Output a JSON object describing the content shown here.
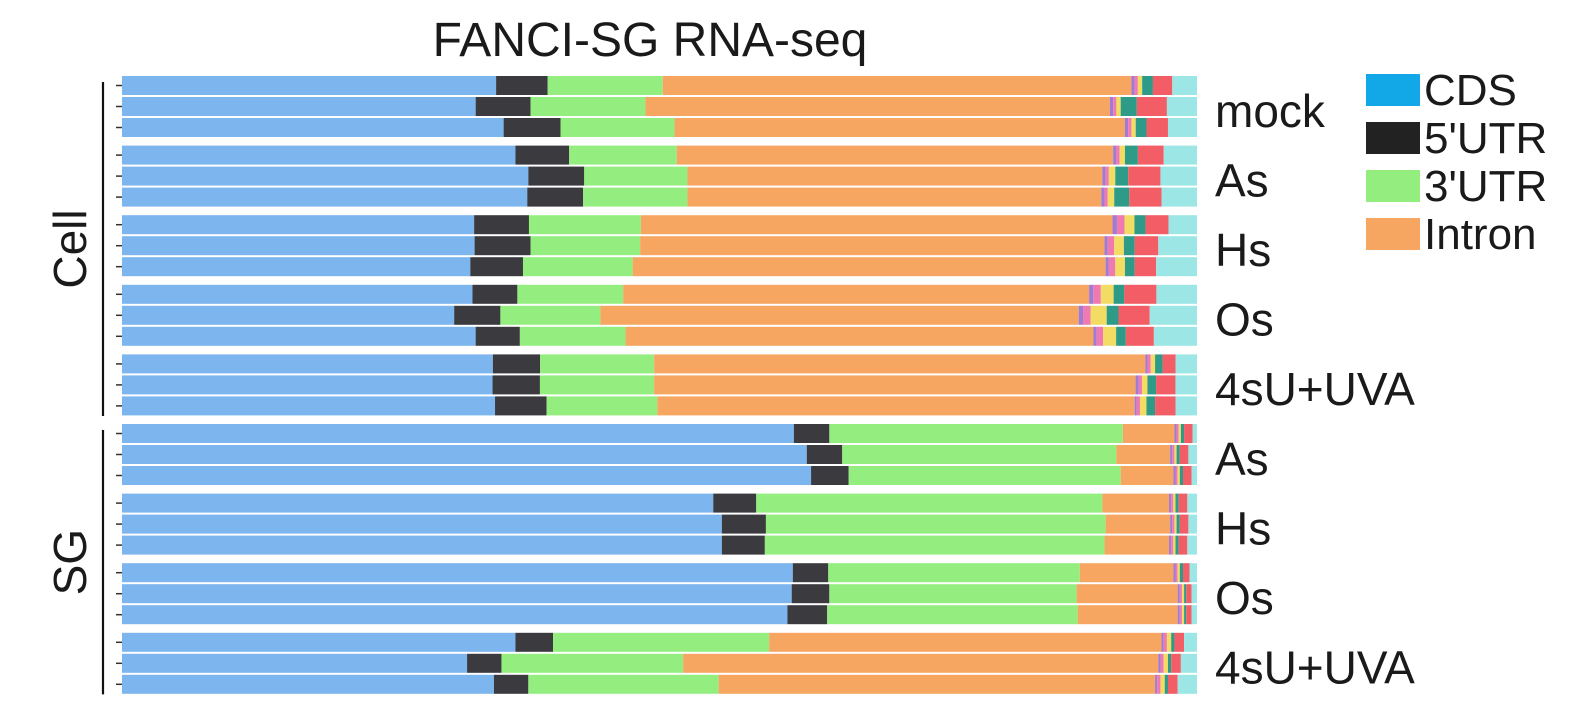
{
  "panel_mark": "",
  "chart_data": {
    "type": "bar",
    "orientation": "horizontal",
    "stacking": "percent",
    "title": "FANCI-SG RNA-seq",
    "xlim": [
      0,
      100
    ],
    "segment_colors": [
      "#7DB5EE",
      "#3A3A3F",
      "#93EE7F",
      "#F7A662",
      "#A07BD6",
      "#F07AB0",
      "#F2DC64",
      "#2E9A88",
      "#F25D66",
      "#9DE6E6"
    ],
    "legend": [
      {
        "label": "CDS",
        "color": "#12A8E8"
      },
      {
        "label": "5'UTR",
        "color": "#222222"
      },
      {
        "label": "3'UTR",
        "color": "#93EE7F"
      },
      {
        "label": "Intron",
        "color": "#F7A662"
      }
    ],
    "groups": [
      {
        "label": "Cell",
        "conditions": [
          {
            "label": "mock",
            "bars": [
              [
                34.8,
                4.8,
                10.7,
                43.6,
                0.3,
                0.3,
                0.4,
                1.0,
                1.8,
                2.3
              ],
              [
                32.9,
                5.1,
                10.7,
                43.2,
                0.3,
                0.3,
                0.4,
                1.5,
                2.8,
                2.8
              ],
              [
                35.5,
                5.3,
                10.6,
                41.9,
                0.3,
                0.3,
                0.4,
                1.0,
                2.0,
                2.7
              ]
            ]
          },
          {
            "label": "As",
            "bars": [
              [
                36.6,
                5.0,
                10.0,
                40.6,
                0.3,
                0.3,
                0.5,
                1.2,
                2.4,
                3.1
              ],
              [
                37.8,
                5.2,
                9.6,
                38.6,
                0.3,
                0.3,
                0.6,
                1.2,
                3.0,
                3.4
              ],
              [
                37.7,
                5.2,
                9.7,
                38.5,
                0.3,
                0.3,
                0.6,
                1.4,
                3.0,
                3.3
              ]
            ]
          },
          {
            "label": "Hs",
            "bars": [
              [
                32.1,
                5.0,
                10.2,
                43.0,
                0.4,
                0.7,
                0.9,
                1.0,
                2.1,
                2.6
              ],
              [
                32.8,
                5.2,
                10.2,
                43.2,
                0.3,
                0.6,
                0.9,
                1.0,
                2.2,
                3.6
              ],
              [
                32.4,
                4.9,
                10.2,
                44.0,
                0.3,
                0.6,
                0.9,
                0.9,
                2.0,
                3.8
              ]
            ]
          },
          {
            "label": "Os",
            "bars": [
              [
                32.8,
                4.2,
                9.9,
                43.6,
                0.4,
                0.7,
                1.2,
                1.0,
                3.0,
                3.8
              ],
              [
                30.9,
                4.3,
                9.3,
                44.5,
                0.4,
                0.7,
                1.5,
                1.1,
                2.9,
                4.4
              ],
              [
                32.8,
                4.1,
                9.8,
                43.4,
                0.3,
                0.6,
                1.2,
                0.9,
                2.6,
                4.0
              ]
            ]
          },
          {
            "label": "4sU+UVA",
            "bars": [
              [
                34.5,
                4.4,
                10.6,
                45.7,
                0.2,
                0.3,
                0.4,
                0.7,
                1.2,
                2.0
              ],
              [
                34.4,
                4.4,
                10.6,
                44.7,
                0.3,
                0.3,
                0.5,
                0.8,
                1.8,
                2.0
              ],
              [
                34.7,
                4.8,
                10.3,
                44.4,
                0.2,
                0.3,
                0.6,
                0.8,
                1.9,
                2.0
              ]
            ]
          }
        ]
      },
      {
        "label": "SG",
        "conditions": [
          {
            "label": "As",
            "bars": [
              [
                62.5,
                3.3,
                27.3,
                4.8,
                0.2,
                0.2,
                0.2,
                0.3,
                0.8,
                0.4
              ],
              [
                63.7,
                3.3,
                25.5,
                5.0,
                0.2,
                0.2,
                0.2,
                0.3,
                0.8,
                0.8
              ],
              [
                64.1,
                3.5,
                25.3,
                4.9,
                0.2,
                0.2,
                0.2,
                0.3,
                0.8,
                0.5
              ]
            ]
          },
          {
            "label": "Hs",
            "bars": [
              [
                55.0,
                4.0,
                32.2,
                6.2,
                0.2,
                0.2,
                0.2,
                0.3,
                0.8,
                0.9
              ],
              [
                55.8,
                4.1,
                31.6,
                6.0,
                0.2,
                0.2,
                0.2,
                0.3,
                0.8,
                0.8
              ],
              [
                55.8,
                4.0,
                31.6,
                6.0,
                0.2,
                0.2,
                0.2,
                0.3,
                0.8,
                0.9
              ]
            ]
          },
          {
            "label": "Os",
            "bars": [
              [
                62.4,
                3.3,
                23.4,
                8.7,
                0.2,
                0.2,
                0.2,
                0.3,
                0.6,
                0.7
              ],
              [
                62.3,
                3.5,
                23.0,
                9.4,
                0.2,
                0.2,
                0.2,
                0.2,
                0.5,
                0.5
              ],
              [
                61.9,
                3.7,
                23.3,
                9.3,
                0.2,
                0.2,
                0.2,
                0.2,
                0.5,
                0.5
              ]
            ]
          },
          {
            "label": "4sU+UVA",
            "bars": [
              [
                36.6,
                3.5,
                20.1,
                36.5,
                0.2,
                0.3,
                0.4,
                0.3,
                0.9,
                1.2
              ],
              [
                32.1,
                3.2,
                16.9,
                44.2,
                0.2,
                0.3,
                0.4,
                0.3,
                0.9,
                1.5
              ],
              [
                34.6,
                3.2,
                17.7,
                40.6,
                0.2,
                0.3,
                0.4,
                0.3,
                0.9,
                1.8
              ]
            ]
          }
        ]
      }
    ]
  }
}
